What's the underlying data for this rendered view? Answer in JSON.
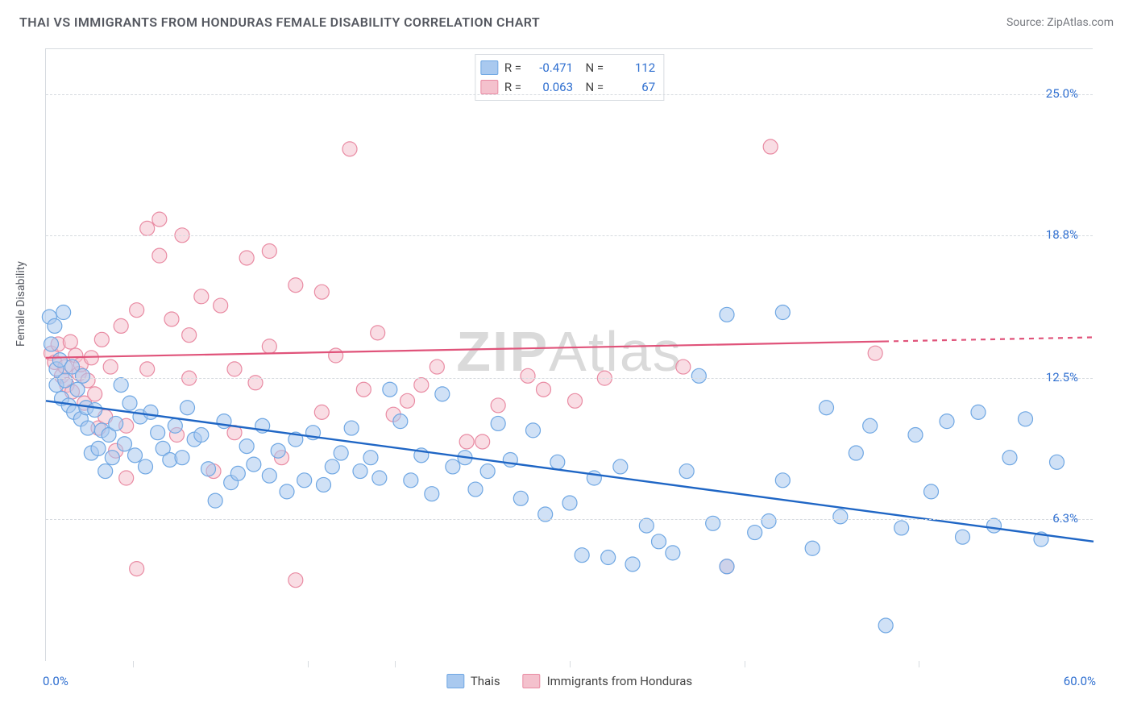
{
  "header": {
    "title": "THAI VS IMMIGRANTS FROM HONDURAS FEMALE DISABILITY CORRELATION CHART",
    "source_prefix": "Source: ",
    "source_link": "ZipAtlas.com"
  },
  "chart": {
    "type": "scatter",
    "ylabel": "Female Disability",
    "xlim": [
      0,
      60
    ],
    "ylim": [
      0,
      27
    ],
    "xticks": [
      5,
      15,
      20,
      30,
      40,
      50
    ],
    "y_gridlines": [
      {
        "value": 6.3,
        "label": "6.3%"
      },
      {
        "value": 12.5,
        "label": "12.5%"
      },
      {
        "value": 18.8,
        "label": "18.8%"
      },
      {
        "value": 25.0,
        "label": "25.0%"
      }
    ],
    "x_min_label": "0.0%",
    "x_max_label": "60.0%",
    "background_color": "#ffffff",
    "grid_color": "#d7dbe0",
    "marker_opacity": 0.55,
    "marker_radius": 9,
    "series": [
      {
        "key": "thais",
        "label": "Thais",
        "color_fill": "#a9c9ef",
        "color_stroke": "#6fa7e3",
        "R": "-0.471",
        "N": "112",
        "trend": {
          "y_at_x0": 11.5,
          "y_at_x60": 5.3,
          "color": "#1f66c5",
          "width": 2.4,
          "solid_to_x": 60
        },
        "points": [
          [
            0.2,
            15.2
          ],
          [
            0.3,
            14.0
          ],
          [
            0.5,
            14.8
          ],
          [
            0.6,
            12.9
          ],
          [
            0.6,
            12.2
          ],
          [
            0.8,
            13.3
          ],
          [
            0.9,
            11.6
          ],
          [
            1.0,
            15.4
          ],
          [
            1.1,
            12.4
          ],
          [
            1.3,
            11.3
          ],
          [
            1.5,
            13.0
          ],
          [
            1.6,
            11.0
          ],
          [
            1.8,
            12.0
          ],
          [
            2.0,
            10.7
          ],
          [
            2.1,
            12.6
          ],
          [
            2.3,
            11.2
          ],
          [
            2.4,
            10.3
          ],
          [
            2.6,
            9.2
          ],
          [
            2.8,
            11.1
          ],
          [
            3.0,
            9.4
          ],
          [
            3.2,
            10.2
          ],
          [
            3.4,
            8.4
          ],
          [
            3.6,
            10.0
          ],
          [
            3.8,
            9.0
          ],
          [
            4.0,
            10.5
          ],
          [
            4.3,
            12.2
          ],
          [
            4.5,
            9.6
          ],
          [
            4.8,
            11.4
          ],
          [
            5.1,
            9.1
          ],
          [
            5.4,
            10.8
          ],
          [
            5.7,
            8.6
          ],
          [
            6.0,
            11.0
          ],
          [
            6.4,
            10.1
          ],
          [
            6.7,
            9.4
          ],
          [
            7.1,
            8.9
          ],
          [
            7.4,
            10.4
          ],
          [
            7.8,
            9.0
          ],
          [
            8.1,
            11.2
          ],
          [
            8.5,
            9.8
          ],
          [
            8.9,
            10.0
          ],
          [
            9.3,
            8.5
          ],
          [
            9.7,
            7.1
          ],
          [
            10.2,
            10.6
          ],
          [
            10.6,
            7.9
          ],
          [
            11.0,
            8.3
          ],
          [
            11.5,
            9.5
          ],
          [
            11.9,
            8.7
          ],
          [
            12.4,
            10.4
          ],
          [
            12.8,
            8.2
          ],
          [
            13.3,
            9.3
          ],
          [
            13.8,
            7.5
          ],
          [
            14.3,
            9.8
          ],
          [
            14.8,
            8.0
          ],
          [
            15.3,
            10.1
          ],
          [
            15.9,
            7.8
          ],
          [
            16.4,
            8.6
          ],
          [
            16.9,
            9.2
          ],
          [
            17.5,
            10.3
          ],
          [
            18.0,
            8.4
          ],
          [
            18.6,
            9.0
          ],
          [
            19.1,
            8.1
          ],
          [
            19.7,
            12.0
          ],
          [
            20.3,
            10.6
          ],
          [
            20.9,
            8.0
          ],
          [
            21.5,
            9.1
          ],
          [
            22.1,
            7.4
          ],
          [
            22.7,
            11.8
          ],
          [
            23.3,
            8.6
          ],
          [
            24.0,
            9.0
          ],
          [
            24.6,
            7.6
          ],
          [
            25.3,
            8.4
          ],
          [
            25.9,
            10.5
          ],
          [
            26.6,
            8.9
          ],
          [
            27.2,
            7.2
          ],
          [
            27.9,
            10.2
          ],
          [
            28.6,
            6.5
          ],
          [
            29.3,
            8.8
          ],
          [
            30.0,
            7.0
          ],
          [
            30.7,
            4.7
          ],
          [
            31.4,
            8.1
          ],
          [
            32.2,
            4.6
          ],
          [
            32.9,
            8.6
          ],
          [
            33.6,
            4.3
          ],
          [
            34.4,
            6.0
          ],
          [
            35.1,
            5.3
          ],
          [
            35.9,
            4.8
          ],
          [
            36.7,
            8.4
          ],
          [
            37.4,
            12.6
          ],
          [
            38.2,
            6.1
          ],
          [
            39.0,
            4.2
          ],
          [
            39.0,
            15.3
          ],
          [
            40.6,
            5.7
          ],
          [
            41.4,
            6.2
          ],
          [
            42.2,
            8.0
          ],
          [
            42.2,
            15.4
          ],
          [
            43.9,
            5.0
          ],
          [
            44.7,
            11.2
          ],
          [
            45.5,
            6.4
          ],
          [
            46.4,
            9.2
          ],
          [
            47.2,
            10.4
          ],
          [
            48.1,
            1.6
          ],
          [
            49.0,
            5.9
          ],
          [
            49.8,
            10.0
          ],
          [
            50.7,
            7.5
          ],
          [
            51.6,
            10.6
          ],
          [
            52.5,
            5.5
          ],
          [
            53.4,
            11.0
          ],
          [
            54.3,
            6.0
          ],
          [
            55.2,
            9.0
          ],
          [
            56.1,
            10.7
          ],
          [
            57.0,
            5.4
          ],
          [
            57.9,
            8.8
          ]
        ]
      },
      {
        "key": "honduras",
        "label": "Immigrants from Honduras",
        "color_fill": "#f4c1cd",
        "color_stroke": "#e98ba3",
        "R": "0.063",
        "N": "67",
        "trend": {
          "y_at_x0": 13.4,
          "y_at_x60": 14.3,
          "color": "#e0537a",
          "width": 2.2,
          "solid_to_x": 48
        },
        "points": [
          [
            0.3,
            13.6
          ],
          [
            0.5,
            13.2
          ],
          [
            0.7,
            14.0
          ],
          [
            0.9,
            12.6
          ],
          [
            1.1,
            13.0
          ],
          [
            1.2,
            12.2
          ],
          [
            1.4,
            14.1
          ],
          [
            1.5,
            11.9
          ],
          [
            1.7,
            13.5
          ],
          [
            1.9,
            12.7
          ],
          [
            2.0,
            13.1
          ],
          [
            2.2,
            11.4
          ],
          [
            2.4,
            12.4
          ],
          [
            2.6,
            13.4
          ],
          [
            2.8,
            11.8
          ],
          [
            3.0,
            10.3
          ],
          [
            3.2,
            14.2
          ],
          [
            3.4,
            10.8
          ],
          [
            3.7,
            13.0
          ],
          [
            4.0,
            9.3
          ],
          [
            4.3,
            14.8
          ],
          [
            4.6,
            10.4
          ],
          [
            4.6,
            8.1
          ],
          [
            5.2,
            15.5
          ],
          [
            5.2,
            4.1
          ],
          [
            5.8,
            12.9
          ],
          [
            5.8,
            19.1
          ],
          [
            6.5,
            17.9
          ],
          [
            6.5,
            19.5
          ],
          [
            7.2,
            15.1
          ],
          [
            7.5,
            10.0
          ],
          [
            7.8,
            18.8
          ],
          [
            8.2,
            12.5
          ],
          [
            8.2,
            14.4
          ],
          [
            8.9,
            16.1
          ],
          [
            9.6,
            8.4
          ],
          [
            10.0,
            15.7
          ],
          [
            10.8,
            12.9
          ],
          [
            10.8,
            10.1
          ],
          [
            11.5,
            17.8
          ],
          [
            12.0,
            12.3
          ],
          [
            12.8,
            13.9
          ],
          [
            12.8,
            18.1
          ],
          [
            13.5,
            9.0
          ],
          [
            14.3,
            16.6
          ],
          [
            14.3,
            3.6
          ],
          [
            15.8,
            16.3
          ],
          [
            15.8,
            11.0
          ],
          [
            16.6,
            13.5
          ],
          [
            17.4,
            22.6
          ],
          [
            18.2,
            12.0
          ],
          [
            19.0,
            14.5
          ],
          [
            19.9,
            10.9
          ],
          [
            20.7,
            11.5
          ],
          [
            21.5,
            12.2
          ],
          [
            22.4,
            13.0
          ],
          [
            24.1,
            9.7
          ],
          [
            25.0,
            9.7
          ],
          [
            25.9,
            11.3
          ],
          [
            27.6,
            12.6
          ],
          [
            28.5,
            12.0
          ],
          [
            30.3,
            11.5
          ],
          [
            32.0,
            12.5
          ],
          [
            36.5,
            13.0
          ],
          [
            39.0,
            4.2
          ],
          [
            41.5,
            22.7
          ],
          [
            47.5,
            13.6
          ]
        ]
      }
    ],
    "watermark": {
      "bold": "ZIP",
      "light": "Atlas"
    }
  }
}
